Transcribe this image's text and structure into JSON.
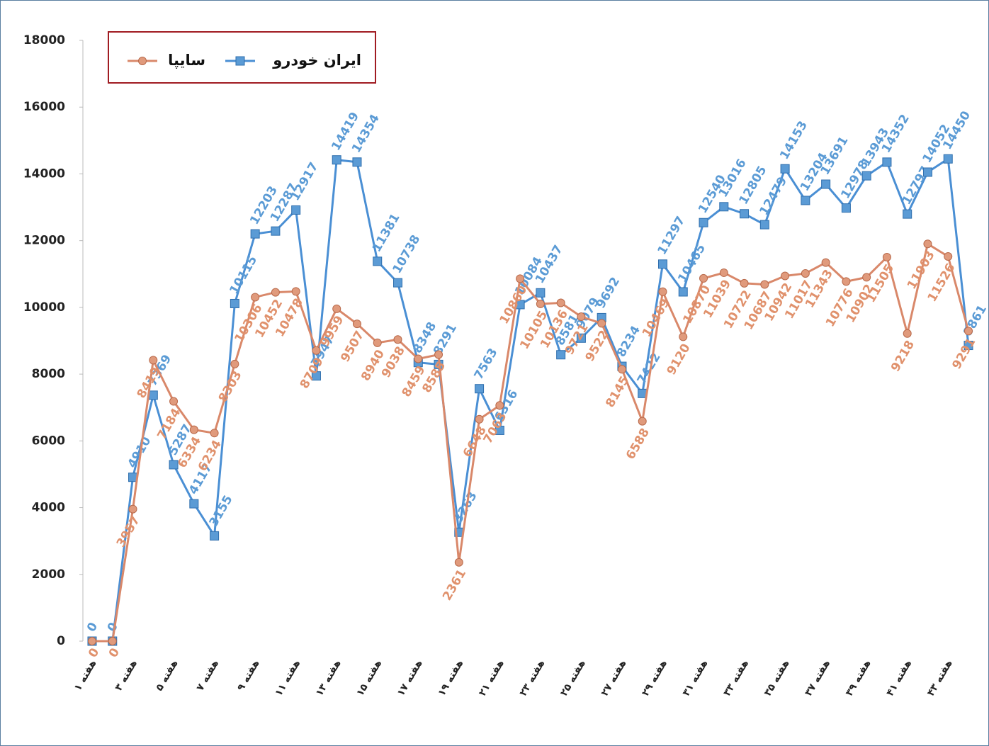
{
  "chart_data": {
    "type": "line",
    "categories": [
      "هفته ۱",
      null,
      "هفته ۳",
      null,
      "هفته ۵",
      null,
      "هفته ۷",
      null,
      "هفته ۹",
      null,
      "هفته ۱۱",
      null,
      "هفته ۱۳",
      null,
      "هفته ۱۵",
      null,
      "هفته ۱۷",
      null,
      "هفته ۱۹",
      null,
      "هفته ۲۱",
      null,
      "هفته ۲۳",
      null,
      "هفته ۲۵",
      null,
      "هفته ۲۷",
      null,
      "هفته ۲۹",
      null,
      "هفته ۳۱",
      null,
      "هفته ۳۳",
      null,
      "هفته ۳۵",
      null,
      "هفته ۳۷",
      null,
      "هفته ۳۹",
      null,
      "هفته ۴۱",
      null,
      "هفته ۴۳",
      null
    ],
    "series": [
      {
        "name": "ایران خودرو",
        "color": "#4a8fd4",
        "marker": "square",
        "values": [
          0,
          0,
          4910,
          7369,
          5287,
          4117,
          3155,
          10115,
          12203,
          12287,
          12917,
          7947,
          14419,
          14354,
          11381,
          10738,
          8348,
          8291,
          3263,
          7563,
          6316,
          10084,
          10437,
          8581,
          9079,
          9692,
          8234,
          7422,
          11297,
          10465,
          12540,
          13016,
          12805,
          12479,
          14153,
          13204,
          13691,
          12978,
          13943,
          14352,
          12797,
          14052,
          14450,
          8861
        ]
      },
      {
        "name": "سایپا",
        "color": "#d9886a",
        "marker": "circle",
        "values": [
          0,
          0,
          3957,
          8419,
          7184,
          6334,
          6234,
          8303,
          10306,
          10452,
          10478,
          8709,
          9959,
          9507,
          8940,
          9038,
          8459,
          8585,
          2361,
          6648,
          7063,
          10860,
          10105,
          10136,
          9721,
          9522,
          8145,
          6588,
          10469,
          9120,
          10870,
          11039,
          10722,
          10687,
          10942,
          11017,
          11343,
          10776,
          10902,
          11505,
          9218,
          11903,
          11526,
          9291
        ]
      }
    ],
    "ylim": [
      0,
      18000
    ],
    "yticks": [
      0,
      2000,
      4000,
      6000,
      8000,
      10000,
      12000,
      14000,
      16000,
      18000
    ],
    "grid": false
  }
}
